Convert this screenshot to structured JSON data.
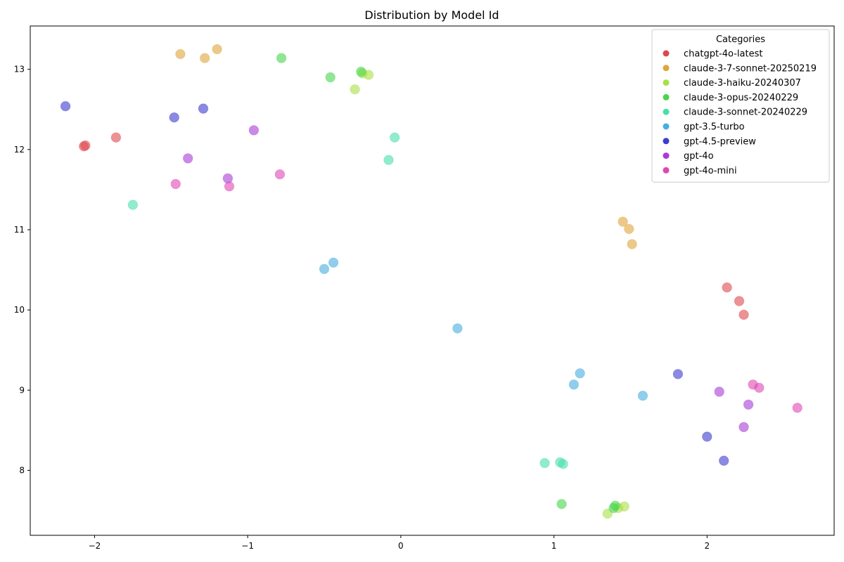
{
  "chart_data": {
    "type": "scatter",
    "title": "Distribution by Model Id",
    "xlabel": "",
    "ylabel": "",
    "xlim": [
      -2.42,
      2.83
    ],
    "ylim": [
      7.19,
      13.54
    ],
    "x_ticks": [
      -2,
      -1,
      0,
      1,
      2
    ],
    "y_ticks": [
      8,
      9,
      10,
      11,
      12,
      13
    ],
    "grid": false,
    "legend": {
      "title": "Categories",
      "position": "top-right"
    },
    "series": [
      {
        "name": "chatgpt-4o-latest",
        "color": "#e0474c",
        "points": [
          [
            -2.07,
            12.04
          ],
          [
            -2.06,
            12.05
          ],
          [
            -1.86,
            12.15
          ],
          [
            2.13,
            10.28
          ],
          [
            2.21,
            10.11
          ],
          [
            2.24,
            9.94
          ]
        ]
      },
      {
        "name": "claude-3-7-sonnet-20250219",
        "color": "#e0a53d",
        "points": [
          [
            -1.44,
            13.19
          ],
          [
            -1.28,
            13.14
          ],
          [
            -1.2,
            13.25
          ],
          [
            1.45,
            11.1
          ],
          [
            1.49,
            11.01
          ],
          [
            1.51,
            10.82
          ]
        ]
      },
      {
        "name": "claude-3-haiku-20240307",
        "color": "#a8e046",
        "points": [
          [
            -0.3,
            12.75
          ],
          [
            -0.21,
            12.93
          ],
          [
            -0.25,
            12.95
          ],
          [
            1.35,
            7.46
          ],
          [
            1.42,
            7.53
          ],
          [
            1.46,
            7.55
          ]
        ]
      },
      {
        "name": "claude-3-opus-20240229",
        "color": "#47d64d",
        "points": [
          [
            -0.78,
            13.14
          ],
          [
            -0.46,
            12.9
          ],
          [
            -0.26,
            12.97
          ],
          [
            1.05,
            7.58
          ],
          [
            1.39,
            7.53
          ],
          [
            1.4,
            7.56
          ]
        ]
      },
      {
        "name": "claude-3-sonnet-20240229",
        "color": "#47e0a8",
        "points": [
          [
            -1.75,
            11.31
          ],
          [
            -0.04,
            12.15
          ],
          [
            -0.08,
            11.87
          ],
          [
            0.94,
            8.09
          ],
          [
            1.04,
            8.1
          ],
          [
            1.06,
            8.08
          ]
        ]
      },
      {
        "name": "gpt-3.5-turbo",
        "color": "#47aee0",
        "points": [
          [
            -0.5,
            10.51
          ],
          [
            -0.44,
            10.59
          ],
          [
            0.37,
            9.77
          ],
          [
            1.13,
            9.07
          ],
          [
            1.17,
            9.21
          ],
          [
            1.58,
            8.93
          ]
        ]
      },
      {
        "name": "gpt-4.5-preview",
        "color": "#3c3ccf",
        "points": [
          [
            -2.19,
            12.54
          ],
          [
            -1.48,
            12.4
          ],
          [
            -1.29,
            12.51
          ],
          [
            1.81,
            9.2
          ],
          [
            2.0,
            8.42
          ],
          [
            2.11,
            8.12
          ]
        ]
      },
      {
        "name": "gpt-4o",
        "color": "#a83cd6",
        "points": [
          [
            -0.96,
            12.24
          ],
          [
            -1.39,
            11.89
          ],
          [
            -1.13,
            11.64
          ],
          [
            2.08,
            8.98
          ],
          [
            2.27,
            8.82
          ],
          [
            2.24,
            8.54
          ]
        ]
      },
      {
        "name": "gpt-4o-mini",
        "color": "#e047b4",
        "points": [
          [
            -1.47,
            11.57
          ],
          [
            -1.12,
            11.54
          ],
          [
            -0.79,
            11.69
          ],
          [
            2.3,
            9.07
          ],
          [
            2.34,
            9.03
          ],
          [
            2.59,
            8.78
          ]
        ]
      }
    ]
  }
}
